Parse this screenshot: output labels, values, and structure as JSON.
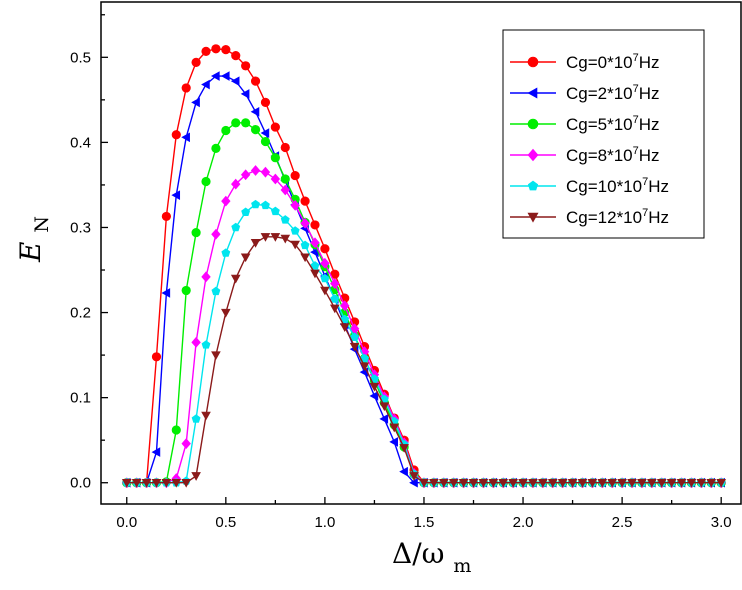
{
  "chart_data": {
    "type": "line",
    "xlabel": "Δ/ω",
    "xlabel_sub": "m",
    "ylabel": "E",
    "ylabel_sub": "N",
    "xlim": [
      -0.13,
      3.1
    ],
    "ylim": [
      -0.025,
      0.565
    ],
    "xticks": [
      "0.0",
      "0.5",
      "1.0",
      "1.5",
      "2.0",
      "2.5",
      "3.0"
    ],
    "yticks": [
      "0.0",
      "0.1",
      "0.2",
      "0.3",
      "0.4",
      "0.5"
    ],
    "legend_position": "top-right",
    "x": [
      0.0,
      0.05,
      0.1,
      0.15,
      0.2,
      0.25,
      0.3,
      0.35,
      0.4,
      0.45,
      0.5,
      0.55,
      0.6,
      0.65,
      0.7,
      0.75,
      0.8,
      0.85,
      0.9,
      0.95,
      1.0,
      1.05,
      1.1,
      1.15,
      1.2,
      1.25,
      1.3,
      1.35,
      1.4,
      1.45,
      1.5,
      1.55,
      1.6,
      1.65,
      1.7,
      1.75,
      1.8,
      1.85,
      1.9,
      1.95,
      2.0,
      2.05,
      2.1,
      2.15,
      2.2,
      2.25,
      2.3,
      2.35,
      2.4,
      2.45,
      2.5,
      2.55,
      2.6,
      2.65,
      2.7,
      2.75,
      2.8,
      2.85,
      2.9,
      2.95,
      3.0
    ],
    "series": [
      {
        "name": "Cg=0*10",
        "sup": "7",
        "unit": "Hz",
        "color": "#ff0000",
        "marker": "circle",
        "values": [
          0,
          0,
          0,
          0.148,
          0.313,
          0.409,
          0.464,
          0.494,
          0.507,
          0.51,
          0.509,
          0.502,
          0.49,
          0.472,
          0.447,
          0.418,
          0.394,
          0.361,
          0.331,
          0.303,
          0.275,
          0.245,
          0.217,
          0.189,
          0.16,
          0.132,
          0.104,
          0.076,
          0.05,
          0.015,
          0,
          0,
          0,
          0,
          0,
          0,
          0,
          0,
          0,
          0,
          0,
          0,
          0,
          0,
          0,
          0,
          0,
          0,
          0,
          0,
          0,
          0,
          0,
          0,
          0,
          0,
          0,
          0,
          0,
          0,
          0
        ]
      },
      {
        "name": "Cg=2*10",
        "sup": "7",
        "unit": "Hz",
        "color": "#0000ff",
        "marker": "triangle-left",
        "values": [
          0,
          0,
          0,
          0.036,
          0.223,
          0.338,
          0.406,
          0.447,
          0.468,
          0.478,
          0.478,
          0.472,
          0.457,
          0.436,
          0.411,
          0.384,
          0.355,
          0.327,
          0.299,
          0.271,
          0.243,
          0.216,
          0.186,
          0.157,
          0.13,
          0.102,
          0.075,
          0.048,
          0.013,
          0,
          0,
          0,
          0,
          0,
          0,
          0,
          0,
          0,
          0,
          0,
          0,
          0,
          0,
          0,
          0,
          0,
          0,
          0,
          0,
          0,
          0,
          0,
          0,
          0,
          0,
          0,
          0,
          0,
          0,
          0,
          0
        ]
      },
      {
        "name": "Cg=5*10",
        "sup": "7",
        "unit": "Hz",
        "color": "#00ee00",
        "marker": "circle",
        "values": [
          0,
          0,
          0,
          0,
          0.001,
          0.062,
          0.226,
          0.294,
          0.354,
          0.393,
          0.414,
          0.423,
          0.423,
          0.415,
          0.401,
          0.382,
          0.357,
          0.333,
          0.306,
          0.28,
          0.254,
          0.227,
          0.2,
          0.173,
          0.146,
          0.12,
          0.094,
          0.068,
          0.042,
          0.01,
          0,
          0,
          0,
          0,
          0,
          0,
          0,
          0,
          0,
          0,
          0,
          0,
          0,
          0,
          0,
          0,
          0,
          0,
          0,
          0,
          0,
          0,
          0,
          0,
          0,
          0,
          0,
          0,
          0,
          0,
          0
        ]
      },
      {
        "name": "Cg=8*10",
        "sup": "7",
        "unit": "Hz",
        "color": "#ff00ff",
        "marker": "diamond",
        "values": [
          0,
          0,
          0,
          0,
          0,
          0.005,
          0.046,
          0.165,
          0.242,
          0.292,
          0.331,
          0.351,
          0.362,
          0.367,
          0.365,
          0.357,
          0.344,
          0.326,
          0.305,
          0.282,
          0.258,
          0.234,
          0.208,
          0.181,
          0.154,
          0.127,
          0.101,
          0.075,
          0.047,
          0.011,
          0,
          0,
          0,
          0,
          0,
          0,
          0,
          0,
          0,
          0,
          0,
          0,
          0,
          0,
          0,
          0,
          0,
          0,
          0,
          0,
          0,
          0,
          0,
          0,
          0,
          0,
          0,
          0,
          0,
          0,
          0
        ]
      },
      {
        "name": "Cg=10*10",
        "sup": "7",
        "unit": "Hz",
        "color": "#00e5ee",
        "marker": "pentagon",
        "values": [
          0,
          0,
          0,
          0,
          0,
          0,
          0.002,
          0.075,
          0.162,
          0.225,
          0.27,
          0.3,
          0.318,
          0.327,
          0.326,
          0.319,
          0.309,
          0.296,
          0.279,
          0.255,
          0.24,
          0.216,
          0.192,
          0.171,
          0.146,
          0.122,
          0.098,
          0.072,
          0.045,
          0.01,
          0,
          0,
          0,
          0,
          0,
          0,
          0,
          0,
          0,
          0,
          0,
          0,
          0,
          0,
          0,
          0,
          0,
          0,
          0,
          0,
          0,
          0,
          0,
          0,
          0,
          0,
          0,
          0,
          0,
          0,
          0
        ]
      },
      {
        "name": "Cg=12*10",
        "sup": "7",
        "unit": "Hz",
        "color": "#8b1a1a",
        "marker": "triangle-down",
        "values": [
          0,
          0,
          0,
          0,
          0,
          0,
          0,
          0.008,
          0.079,
          0.15,
          0.2,
          0.24,
          0.265,
          0.282,
          0.289,
          0.289,
          0.287,
          0.28,
          0.265,
          0.246,
          0.226,
          0.205,
          0.183,
          0.16,
          0.137,
          0.113,
          0.09,
          0.065,
          0.041,
          0.008,
          0,
          0,
          0,
          0,
          0,
          0,
          0,
          0,
          0,
          0,
          0,
          0,
          0,
          0,
          0,
          0,
          0,
          0,
          0,
          0,
          0,
          0,
          0,
          0,
          0,
          0,
          0,
          0,
          0,
          0,
          0
        ]
      }
    ]
  }
}
